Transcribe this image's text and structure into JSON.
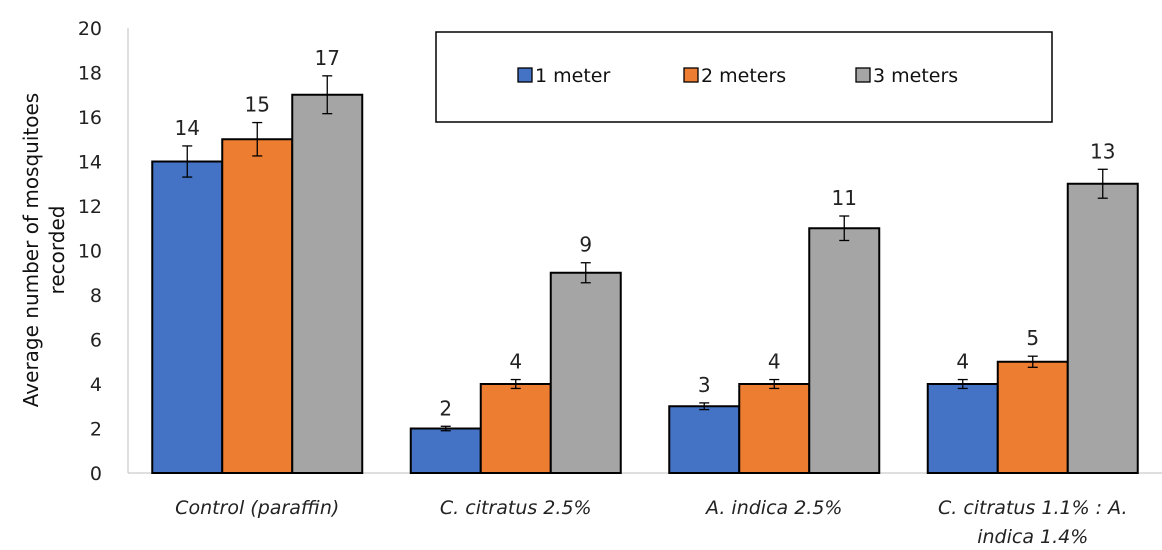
{
  "chart_data": {
    "type": "bar",
    "ylabel": "Average number of mosquitoes recorded",
    "ylabel_lines": [
      "Average number of mosquitoes",
      "recorded"
    ],
    "xlabel": "",
    "ylim": [
      0,
      20
    ],
    "yticks": [
      0,
      2,
      4,
      6,
      8,
      10,
      12,
      14,
      16,
      18,
      20
    ],
    "grid": false,
    "legend_position": "top-right",
    "categories": [
      "Control (paraffin)",
      "C. citratus 2.5%",
      "A. indica 2.5%",
      "C. citratus 1.1% : A. indica 1.4%"
    ],
    "category_lines": [
      [
        "Control (paraffin)"
      ],
      [
        "C. citratus 2.5%"
      ],
      [
        "A. indica 2.5%"
      ],
      [
        "C. citratus 1.1% : A.",
        "indica 1.4%"
      ]
    ],
    "series": [
      {
        "name": "1 meter",
        "color": "#4472C4",
        "values": [
          14,
          2,
          3,
          4
        ],
        "errors": [
          0.7,
          0.1,
          0.15,
          0.2
        ]
      },
      {
        "name": "2 meters",
        "color": "#ED7D31",
        "values": [
          15,
          4,
          4,
          5
        ],
        "errors": [
          0.75,
          0.2,
          0.2,
          0.25
        ]
      },
      {
        "name": "3 meters",
        "color": "#A5A5A5",
        "values": [
          17,
          9,
          11,
          13
        ],
        "errors": [
          0.85,
          0.45,
          0.55,
          0.65
        ]
      }
    ]
  }
}
